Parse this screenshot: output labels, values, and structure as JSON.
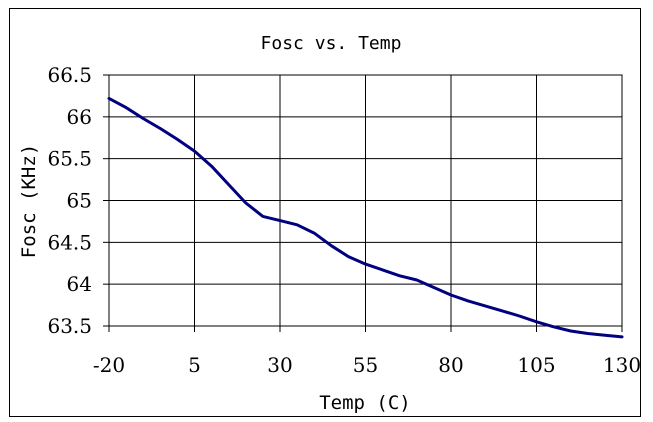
{
  "chart_data": {
    "type": "line",
    "title": "Fosc vs. Temp",
    "xlabel": "Temp (C)",
    "ylabel": "Fosc (KHz)",
    "x_ticks": [
      "-20",
      "5",
      "30",
      "55",
      "80",
      "105",
      "130"
    ],
    "y_ticks": [
      "63.5",
      "64",
      "64.5",
      "65",
      "65.5",
      "66",
      "66.5"
    ],
    "xlim": [
      -20,
      130
    ],
    "ylim": [
      63.5,
      66.5
    ],
    "grid": true,
    "series": [
      {
        "color": "#000080",
        "x": [
          -20,
          -15,
          -10,
          -5,
          0,
          5,
          10,
          15,
          20,
          25,
          30,
          35,
          40,
          45,
          50,
          55,
          60,
          65,
          70,
          75,
          80,
          85,
          90,
          95,
          100,
          105,
          110,
          115,
          120,
          125,
          130
        ],
        "y": [
          66.22,
          66.11,
          65.98,
          65.86,
          65.73,
          65.59,
          65.41,
          65.19,
          64.97,
          64.81,
          64.76,
          64.71,
          64.61,
          64.46,
          64.33,
          64.24,
          64.17,
          64.1,
          64.05,
          63.96,
          63.87,
          63.8,
          63.74,
          63.68,
          63.62,
          63.55,
          63.49,
          63.44,
          63.41,
          63.39,
          63.37
        ]
      }
    ]
  }
}
